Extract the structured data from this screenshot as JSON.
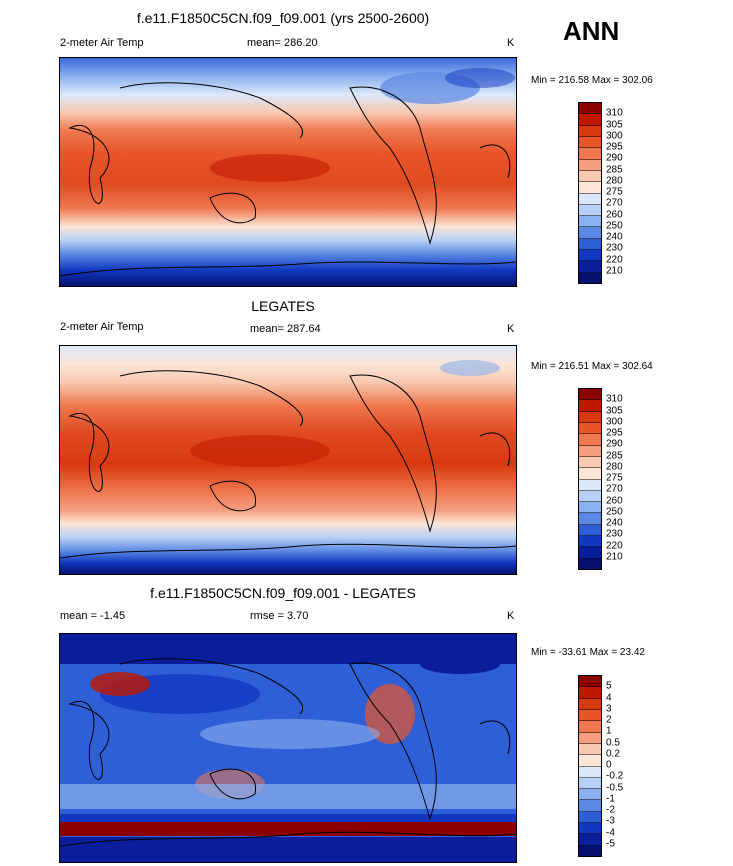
{
  "season": "ANN",
  "panels": [
    {
      "title": "f.e11.F1850C5CN.f09_f09.001 (yrs 2500-2600)",
      "left": "2-meter Air Temp",
      "center": "mean= 286.20",
      "units": "K",
      "minmax": "Min = 216.58 Max = 302.06",
      "levels": [
        "310",
        "305",
        "300",
        "295",
        "290",
        "285",
        "280",
        "275",
        "270",
        "260",
        "250",
        "240",
        "230",
        "220",
        "210"
      ]
    },
    {
      "title": "LEGATES",
      "left": "2-meter Air Temp",
      "center": "mean= 287.64",
      "units": "K",
      "minmax": "Min = 216.51 Max = 302.64",
      "levels": [
        "310",
        "305",
        "300",
        "295",
        "290",
        "285",
        "280",
        "275",
        "270",
        "260",
        "250",
        "240",
        "230",
        "220",
        "210"
      ]
    },
    {
      "title": "f.e11.F1850C5CN.f09_f09.001 - LEGATES",
      "left": "mean =  -1.45",
      "center": "rmse =  3.70",
      "units": "K",
      "minmax": "Min = -33.61 Max =  23.42",
      "levels": [
        "5",
        "4",
        "3",
        "2",
        "1",
        "0.5",
        "0.2",
        "0",
        "-0.2",
        "-0.5",
        "-1",
        "-2",
        "-3",
        "-4",
        "-5"
      ]
    }
  ],
  "colors": {
    "temp_scale": [
      "#8c0000",
      "#c01800",
      "#d83a10",
      "#e85528",
      "#f07850",
      "#f59e80",
      "#f8c8b0",
      "#fbe6d8",
      "#dce8fa",
      "#b8d0f5",
      "#8ab0ee",
      "#5a88e3",
      "#2f5fd6",
      "#1238c2",
      "#0a1e9c",
      "#061070"
    ],
    "diff_scale": [
      "#8c0000",
      "#c01800",
      "#d83a10",
      "#e85528",
      "#f07850",
      "#f59e80",
      "#f8c8b0",
      "#fbe6d8",
      "#dce8fa",
      "#b8d0f5",
      "#8ab0ee",
      "#5a88e3",
      "#2f5fd6",
      "#1238c2",
      "#0a1e9c",
      "#061070"
    ]
  }
}
